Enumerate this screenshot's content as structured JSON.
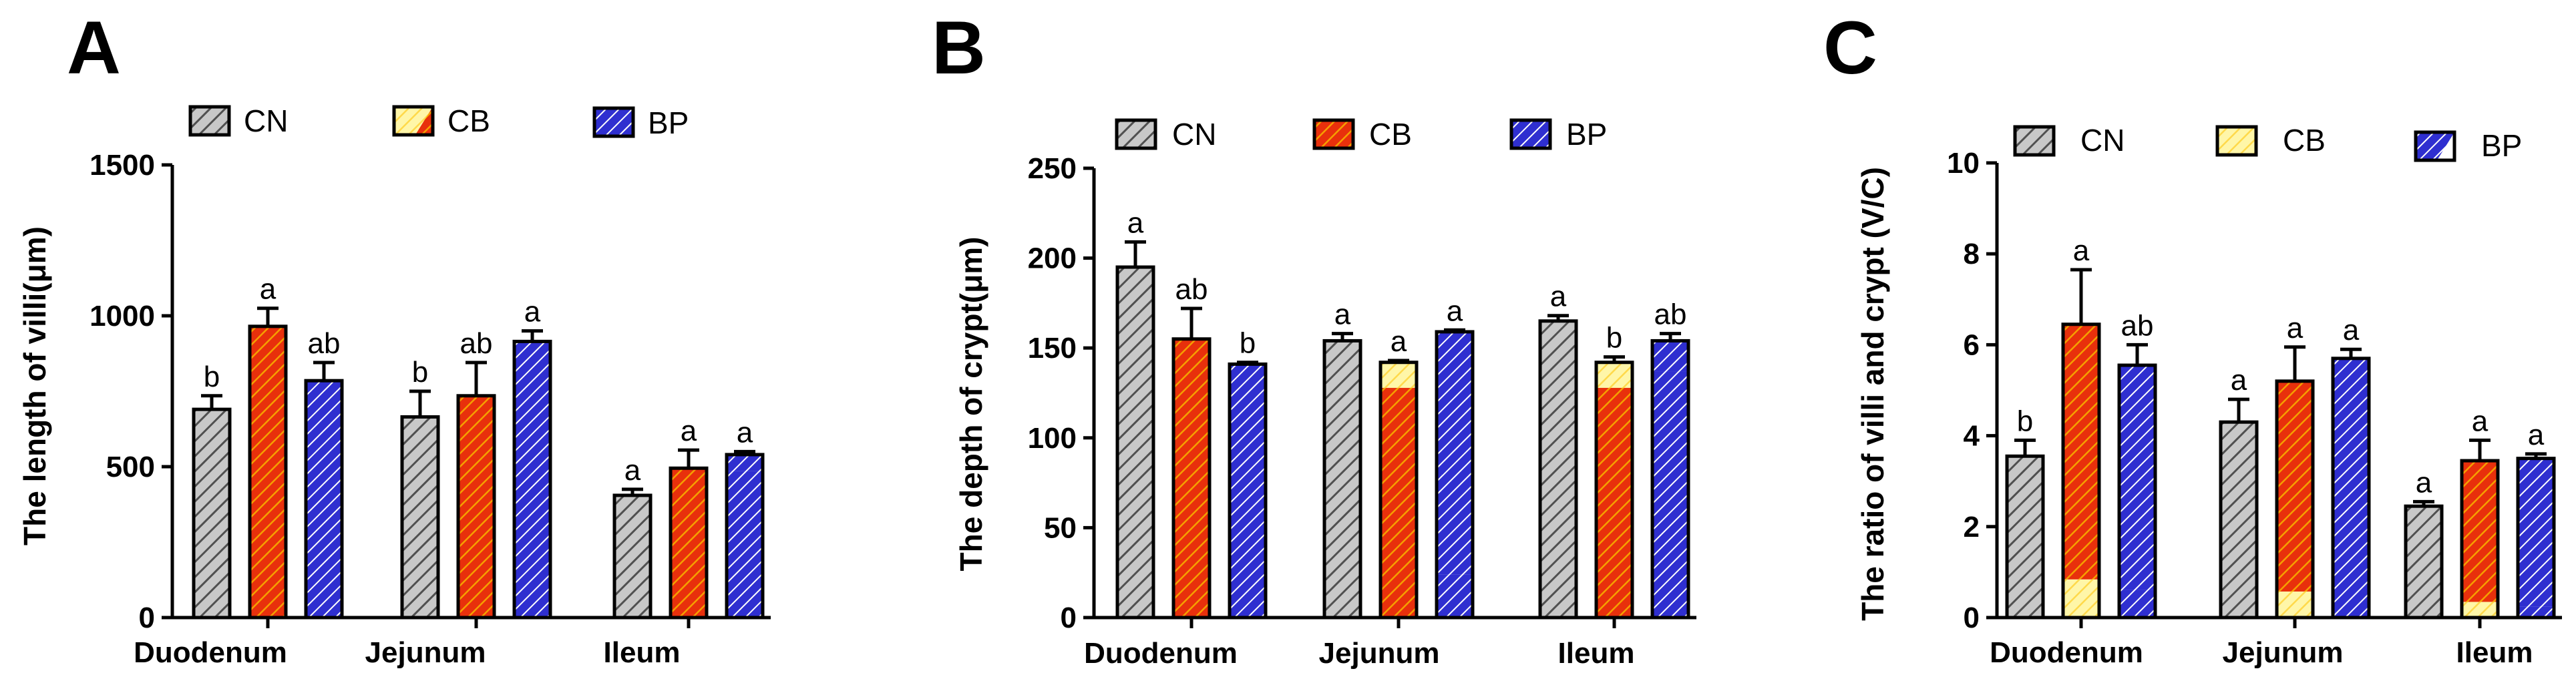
{
  "chart_data": [
    {
      "panel": "A",
      "type": "bar",
      "ylabel": "The length of villi(μm)",
      "ylim": [
        0,
        1500
      ],
      "yticks": [
        0,
        500,
        1000,
        1500
      ],
      "categories": [
        "Duodenum",
        "Jejunum",
        "Ileum"
      ],
      "legend": [
        "CN",
        "CB",
        "BP"
      ],
      "series": [
        {
          "name": "CN",
          "values": [
            690,
            665,
            405
          ],
          "errors": [
            45,
            85,
            20
          ],
          "labels": [
            "b",
            "b",
            "a"
          ],
          "fills": [
            {
              "pattern": "gray",
              "frac": 1
            },
            {
              "pattern": "gray",
              "frac": 1
            },
            {
              "pattern": "gray",
              "frac": 1
            }
          ]
        },
        {
          "name": "CB",
          "values": [
            965,
            735,
            495
          ],
          "errors": [
            60,
            110,
            60
          ],
          "labels": [
            "a",
            "ab",
            "a"
          ],
          "fills": [
            {
              "pattern": "redYellow",
              "frac": 1
            },
            {
              "pattern": "red",
              "frac": 1
            },
            {
              "pattern": "red",
              "frac": 1
            }
          ]
        },
        {
          "name": "BP",
          "values": [
            785,
            915,
            540
          ],
          "errors": [
            60,
            35,
            10
          ],
          "labels": [
            "ab",
            "a",
            "a"
          ],
          "fills": [
            {
              "pattern": "blue",
              "frac": 1
            },
            {
              "pattern": "blue",
              "frac": 1
            },
            {
              "pattern": "blue",
              "frac": 0.1
            }
          ]
        }
      ]
    },
    {
      "panel": "B",
      "type": "bar",
      "ylabel": "The depth of crypt(μm)",
      "ylim": [
        0,
        250
      ],
      "yticks": [
        0,
        50,
        100,
        150,
        200,
        250
      ],
      "categories": [
        "Duodenum",
        "Jejunum",
        "Ileum"
      ],
      "legend": [
        "CN",
        "CB",
        "BP"
      ],
      "series": [
        {
          "name": "CN",
          "values": [
            195,
            154,
            165
          ],
          "errors": [
            14,
            4,
            3
          ],
          "labels": [
            "a",
            "a",
            "a"
          ],
          "fills": [
            {
              "pattern": "gray",
              "frac": 1
            },
            {
              "pattern": "gray",
              "frac": 1
            },
            {
              "pattern": "gray",
              "frac": 1
            }
          ]
        },
        {
          "name": "CB",
          "values": [
            155,
            142,
            142
          ],
          "errors": [
            17,
            1,
            3
          ],
          "labels": [
            "ab",
            "a",
            "b"
          ],
          "fills": [
            {
              "pattern": "red",
              "frac": 1
            },
            {
              "pattern": "yellowRed",
              "frac": 0.1
            },
            {
              "pattern": "yellowRed",
              "frac": 0.1
            }
          ]
        },
        {
          "name": "BP",
          "values": [
            141,
            159,
            154
          ],
          "errors": [
            1,
            1,
            4
          ],
          "labels": [
            "b",
            "a",
            "ab"
          ],
          "fills": [
            {
              "pattern": "blue",
              "frac": 1
            },
            {
              "pattern": "blue",
              "frac": 0.85
            },
            {
              "pattern": "blue",
              "frac": 0.11
            }
          ]
        }
      ]
    },
    {
      "panel": "C",
      "type": "bar",
      "ylabel": "The ratio of villi and crypt (V/C)",
      "ylim": [
        0,
        10
      ],
      "yticks": [
        0,
        2,
        4,
        6,
        8,
        10
      ],
      "categories": [
        "Duodenum",
        "Jejunum",
        "Ileum"
      ],
      "legend": [
        "CN",
        "CB",
        "BP"
      ],
      "series": [
        {
          "name": "CN",
          "values": [
            3.55,
            4.3,
            2.45
          ],
          "errors": [
            0.35,
            0.5,
            0.1
          ],
          "labels": [
            "b",
            "a",
            "a"
          ],
          "fills": [
            {
              "pattern": "gray",
              "frac": 1
            },
            {
              "pattern": "gray",
              "frac": 1
            },
            {
              "pattern": "gray",
              "frac": 1
            }
          ]
        },
        {
          "name": "CB",
          "values": [
            6.45,
            5.2,
            3.45
          ],
          "errors": [
            1.2,
            0.75,
            0.45
          ],
          "labels": [
            "a",
            "a",
            "a"
          ],
          "fills": [
            {
              "pattern": "redYellow",
              "frac": 0.87
            },
            {
              "pattern": "redYellow",
              "frac": 0.89
            },
            {
              "pattern": "redYellow",
              "frac": 0.9
            }
          ]
        },
        {
          "name": "BP",
          "values": [
            5.55,
            5.7,
            3.5
          ],
          "errors": [
            0.45,
            0.2,
            0.1
          ],
          "labels": [
            "ab",
            "a",
            "a"
          ],
          "fills": [
            {
              "pattern": "blue",
              "frac": 0.89
            },
            {
              "pattern": "blue",
              "frac": 1
            },
            {
              "pattern": "blue",
              "frac": 0.93
            }
          ]
        }
      ]
    }
  ],
  "legend_swatches": {
    "A": [
      "gray",
      "yellowRed",
      "blue"
    ],
    "B": [
      "gray",
      "red",
      "blue"
    ],
    "C": [
      "gray",
      "yellow",
      "blueWhite"
    ]
  },
  "colors": {
    "gray_bg": "#c8c8c8",
    "gray_line": "#505050",
    "red_bg": "#e8300c",
    "red_line": "#f5a000",
    "yellow_bg": "#fff6a8",
    "yellow_line": "#ffd94a",
    "blue_bg": "#2f2fd0",
    "blue_line": "#ffffff"
  }
}
